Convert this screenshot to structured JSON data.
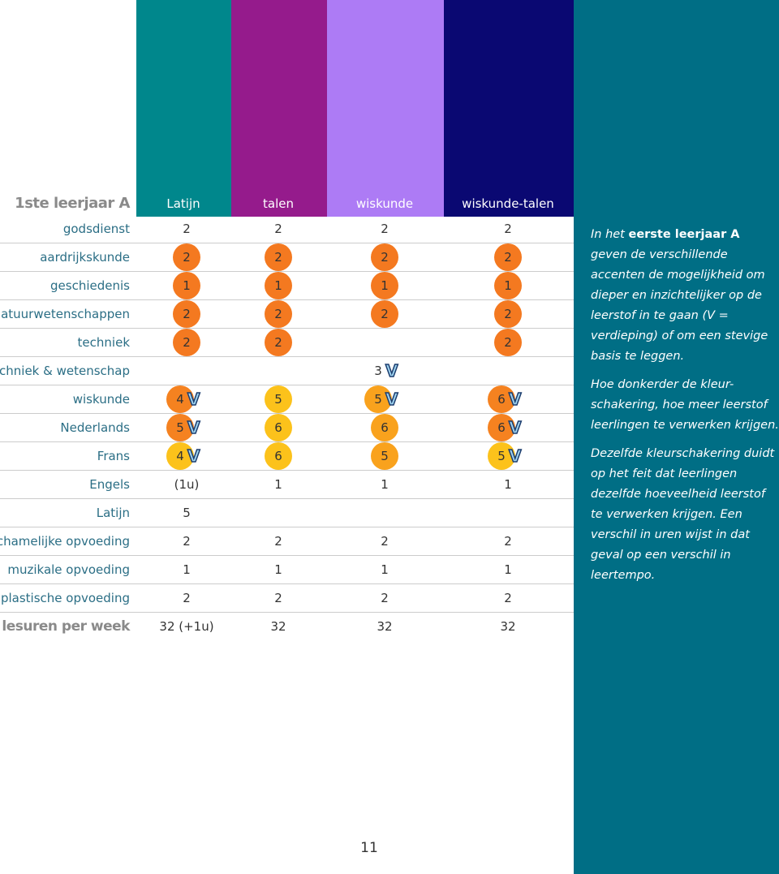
{
  "header": {
    "title": "1ste leerjaar A",
    "columns": [
      "Latijn",
      "talen",
      "wiskunde",
      "wiskunde-talen"
    ],
    "column_colors": [
      "#00878c",
      "#951b8c",
      "#ad7bf5",
      "#0a0872"
    ]
  },
  "table": {
    "rows": [
      {
        "label": "godsdienst",
        "cells": [
          {
            "text": "2"
          },
          {
            "text": "2"
          },
          {
            "text": "2"
          },
          {
            "text": "2"
          }
        ]
      },
      {
        "label": "aardrijkskunde",
        "cells": [
          {
            "text": "2",
            "color": "#f47920"
          },
          {
            "text": "2",
            "color": "#f47920"
          },
          {
            "text": "2",
            "color": "#f47920"
          },
          {
            "text": "2",
            "color": "#f47920"
          }
        ]
      },
      {
        "label": "geschiedenis",
        "cells": [
          {
            "text": "1",
            "color": "#f47920"
          },
          {
            "text": "1",
            "color": "#f47920"
          },
          {
            "text": "1",
            "color": "#f47920"
          },
          {
            "text": "1",
            "color": "#f47920"
          }
        ]
      },
      {
        "label": "natuurwetenschappen",
        "cells": [
          {
            "text": "2",
            "color": "#f47920"
          },
          {
            "text": "2",
            "color": "#f47920"
          },
          {
            "text": "2",
            "color": "#f47920"
          },
          {
            "text": "2",
            "color": "#f47920"
          }
        ]
      },
      {
        "label": "techniek",
        "cells": [
          {
            "text": "2",
            "color": "#f47920"
          },
          {
            "text": "2",
            "color": "#f47920"
          },
          null,
          {
            "text": "2",
            "color": "#f47920"
          }
        ]
      },
      {
        "label": "techniek & wetenschap",
        "cells": [
          null,
          null,
          {
            "text": "3",
            "badge": "V"
          },
          null
        ]
      },
      {
        "label": "wiskunde",
        "cells": [
          {
            "text": "4",
            "color": "#f58220",
            "badge": "V"
          },
          {
            "text": "5",
            "color": "#fcc21b"
          },
          {
            "text": "5",
            "color": "#f9a21d",
            "badge": "V"
          },
          {
            "text": "6",
            "color": "#f58220",
            "badge": "V"
          }
        ]
      },
      {
        "label": "Nederlands",
        "cells": [
          {
            "text": "5",
            "color": "#f58220",
            "badge": "V"
          },
          {
            "text": "6",
            "color": "#fcc21b"
          },
          {
            "text": "6",
            "color": "#f9a21d"
          },
          {
            "text": "6",
            "color": "#f58220",
            "badge": "V"
          }
        ]
      },
      {
        "label": "Frans",
        "cells": [
          {
            "text": "4",
            "color": "#fcc21b",
            "badge": "V"
          },
          {
            "text": "6",
            "color": "#fcc21b"
          },
          {
            "text": "5",
            "color": "#f9a21d"
          },
          {
            "text": "5",
            "color": "#fcc21b",
            "badge": "V"
          }
        ]
      },
      {
        "label": "Engels",
        "cells": [
          {
            "text": "(1u)"
          },
          {
            "text": "1"
          },
          {
            "text": "1"
          },
          {
            "text": "1"
          }
        ]
      },
      {
        "label": "Latijn",
        "cells": [
          {
            "text": "5"
          },
          null,
          null,
          null
        ]
      },
      {
        "label": "lichamelijke opvoeding",
        "cells": [
          {
            "text": "2"
          },
          {
            "text": "2"
          },
          {
            "text": "2"
          },
          {
            "text": "2"
          }
        ]
      },
      {
        "label": "muzikale opvoeding",
        "cells": [
          {
            "text": "1"
          },
          {
            "text": "1"
          },
          {
            "text": "1"
          },
          {
            "text": "1"
          }
        ]
      },
      {
        "label": "plastische opvoeding",
        "cells": [
          {
            "text": "2"
          },
          {
            "text": "2"
          },
          {
            "text": "2"
          },
          {
            "text": "2"
          }
        ]
      }
    ],
    "total": {
      "label": "lesuren per week",
      "cells": [
        "32 (+1u)",
        "32",
        "32",
        "32"
      ]
    }
  },
  "side": {
    "intro": "In het ",
    "intro_bold": "eerste leerjaar A",
    "intro_rest": " geven de verschillende accenten de mogelijkheid om dieper en inzichtelijker op de leerstof in te gaan (V = verdieping) of om een stevige basis te leggen.",
    "paragraphs": [
      "Hoe donkerder de kleur-schakering, hoe meer leerstof leerlingen te verwerken krijgen.",
      "Dezelfde kleurschakering duidt op het feit dat leerlingen dezelfde hoeveelheid leerstof te verwerken krijgen. Een verschil in uren wijst in dat geval op een verschil in leertempo."
    ]
  },
  "footer": {
    "page": "11"
  }
}
